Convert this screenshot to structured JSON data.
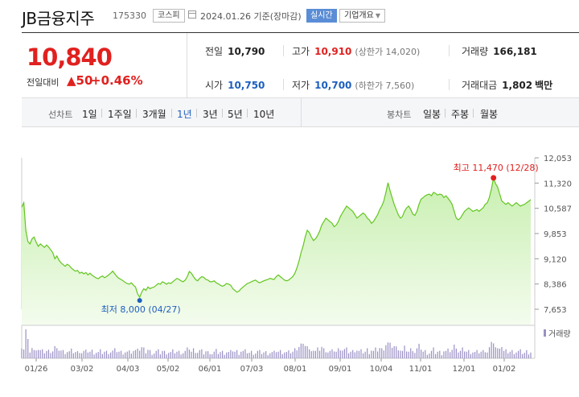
{
  "header": {
    "name": "JB금융지주",
    "code": "175330",
    "market": "코스피",
    "date": "2024.01.26 기준(장마감)",
    "realtime": "실시간",
    "company_info": "기업개요"
  },
  "quote": {
    "price": "10,840",
    "change_label": "전일대비",
    "change_arrow": "▲",
    "change": "50",
    "change_pct": "+0.46%",
    "prev_close_label": "전일",
    "prev_close": "10,790",
    "high_label": "고가",
    "high": "10,910",
    "upper_limit": "(상한가 14,020)",
    "volume_label": "거래량",
    "volume": "166,181",
    "open_label": "시가",
    "open": "10,750",
    "low_label": "저가",
    "low": "10,700",
    "lower_limit": "(하한가 7,560)",
    "amount_label": "거래대금",
    "amount": "1,802",
    "amount_unit": "백만"
  },
  "period_bar": {
    "line_label": "선차트",
    "line_items": [
      "1일",
      "1주일",
      "3개월",
      "1년",
      "3년",
      "5년",
      "10년"
    ],
    "active": "1년",
    "candle_label": "봉차트",
    "candle_items": [
      "일봉",
      "주봉",
      "월봉"
    ]
  },
  "chart_data": {
    "type": "area",
    "y_ticks": [
      "12,053",
      "11,320",
      "10,587",
      "9,853",
      "9,120",
      "8,386",
      "7,653"
    ],
    "ylim": [
      7653,
      12053
    ],
    "x_ticks": [
      "01/26",
      "03/02",
      "04/03",
      "05/02",
      "06/01",
      "07/03",
      "08/01",
      "09/01",
      "10/04",
      "11/01",
      "12/01",
      "01/02"
    ],
    "max_label": "최고 11,470 (12/28)",
    "min_label": "최저 8,000 (04/27)",
    "volume_label": "거래량",
    "colors": {
      "line": "#62c61f",
      "fill_top": "#c8efb0",
      "fill_bottom": "#f4fcee",
      "max": "#e0211f",
      "min": "#1e5fbf",
      "volume": "#9a8fc4"
    },
    "values": [
      10620,
      10750,
      9950,
      9620,
      9550,
      9700,
      9750,
      9600,
      9480,
      9550,
      9500,
      9450,
      9520,
      9460,
      9380,
      9300,
      9120,
      9200,
      9080,
      9000,
      8950,
      8900,
      8960,
      8920,
      8850,
      8800,
      8760,
      8780,
      8700,
      8730,
      8680,
      8720,
      8650,
      8700,
      8640,
      8600,
      8560,
      8540,
      8590,
      8620,
      8570,
      8600,
      8650,
      8700,
      8760,
      8680,
      8600,
      8550,
      8520,
      8480,
      8430,
      8400,
      8380,
      8420,
      8350,
      8300,
      8100,
      8000,
      8150,
      8250,
      8200,
      8300,
      8250,
      8280,
      8300,
      8350,
      8400,
      8380,
      8450,
      8420,
      8380,
      8420,
      8400,
      8450,
      8500,
      8550,
      8520,
      8480,
      8450,
      8500,
      8600,
      8750,
      8700,
      8600,
      8520,
      8480,
      8550,
      8600,
      8580,
      8520,
      8500,
      8450,
      8450,
      8480,
      8420,
      8390,
      8350,
      8320,
      8350,
      8400,
      8380,
      8350,
      8250,
      8200,
      8150,
      8180,
      8250,
      8300,
      8350,
      8400,
      8420,
      8450,
      8480,
      8500,
      8450,
      8420,
      8450,
      8480,
      8500,
      8520,
      8550,
      8530,
      8520,
      8600,
      8650,
      8600,
      8550,
      8500,
      8480,
      8500,
      8550,
      8600,
      8700,
      8850,
      9050,
      9300,
      9500,
      9750,
      9950,
      9880,
      9750,
      9650,
      9700,
      9800,
      9920,
      10100,
      10200,
      10300,
      10250,
      10200,
      10150,
      10050,
      10100,
      10200,
      10350,
      10450,
      10550,
      10650,
      10600,
      10550,
      10500,
      10400,
      10300,
      10350,
      10400,
      10450,
      10400,
      10300,
      10250,
      10150,
      10200,
      10300,
      10400,
      10550,
      10650,
      10800,
      11050,
      11330,
      11100,
      10900,
      10700,
      10550,
      10400,
      10300,
      10350,
      10500,
      10600,
      10650,
      10550,
      10420,
      10380,
      10500,
      10700,
      10850,
      10900,
      10950,
      10980,
      11000,
      10950,
      11050,
      11020,
      10970,
      11000,
      10980,
      10900,
      10950,
      10880,
      10800,
      10700,
      10500,
      10300,
      10250,
      10300,
      10400,
      10500,
      10550,
      10600,
      10550,
      10500,
      10520,
      10550,
      10500,
      10550,
      10600,
      10700,
      10750,
      10900,
      11150,
      11470,
      11300,
      11200,
      11000,
      10800,
      10750,
      10700,
      10750,
      10700,
      10650,
      10700,
      10750,
      10700,
      10650,
      10680,
      10700,
      10750,
      10790,
      10840
    ]
  }
}
